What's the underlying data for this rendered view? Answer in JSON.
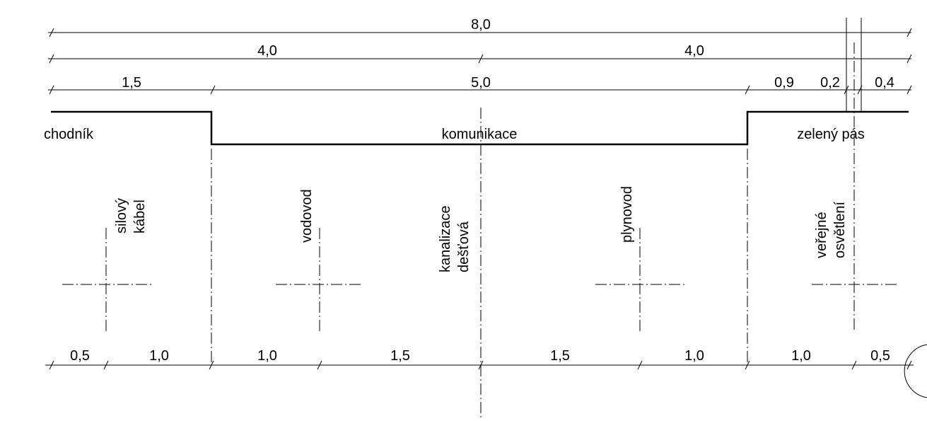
{
  "dimensions": {
    "total": "8,0",
    "half_left": "4,0",
    "half_right": "4,0",
    "sidewalk_width": "1,5",
    "road_width": "5,0",
    "green_a": "0,9",
    "green_b": "0,2",
    "green_c": "0,4",
    "bottom": [
      "0,5",
      "1,0",
      "1,0",
      "1,5",
      "1,5",
      "1,0",
      "1,0",
      "0,5"
    ]
  },
  "zones": {
    "sidewalk": "chodník",
    "road": "komunikace",
    "green": "zelený pás"
  },
  "utilities": [
    {
      "id": "power",
      "lines": [
        "silový",
        "kábel"
      ]
    },
    {
      "id": "water",
      "lines": [
        "vodovod"
      ]
    },
    {
      "id": "storm-sewer",
      "lines": [
        "kanalizace",
        "dešťová"
      ]
    },
    {
      "id": "gas",
      "lines": [
        "plynovod"
      ]
    },
    {
      "id": "lighting",
      "lines": [
        "veřejné",
        "osvětlení"
      ]
    }
  ]
}
